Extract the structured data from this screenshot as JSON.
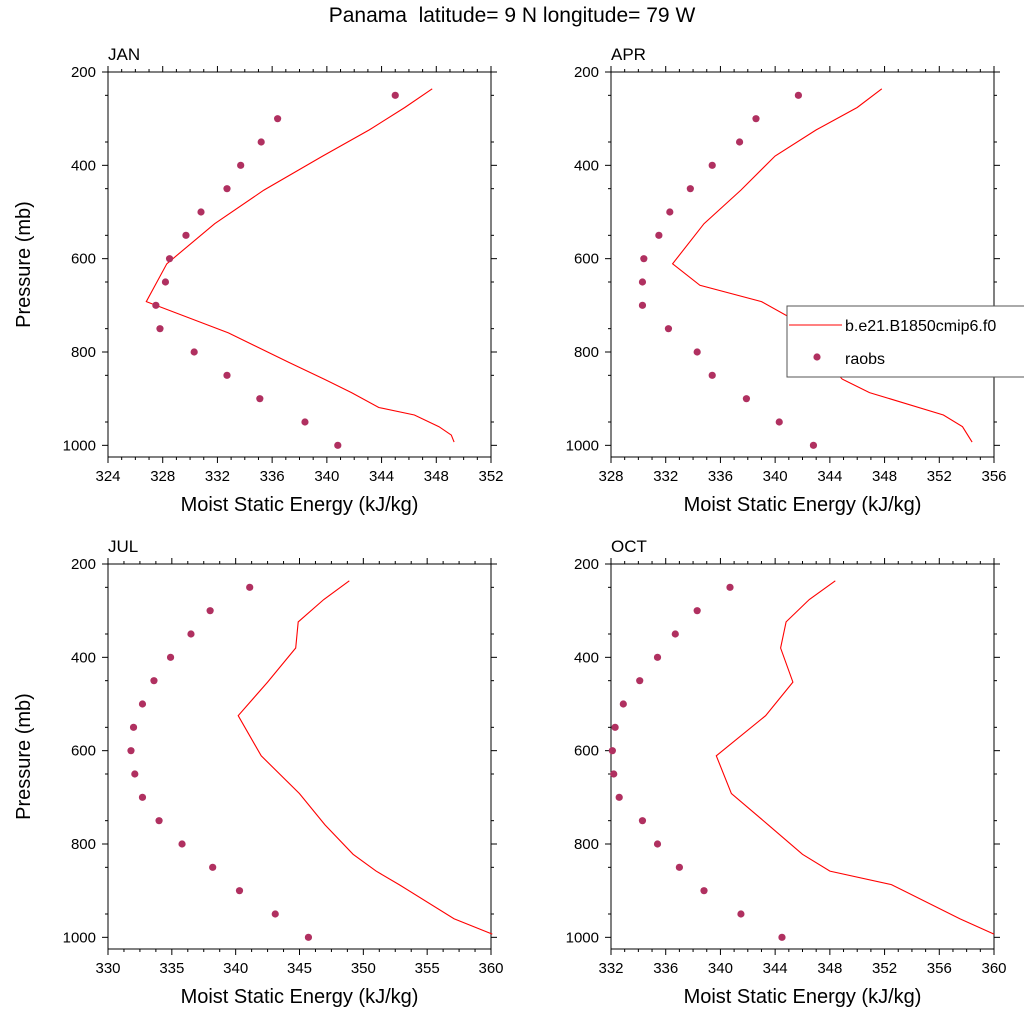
{
  "title": "Panama  latitude= 9 N longitude= 79 W",
  "colors": {
    "model_line": "#ff0000",
    "obs_marker": "#b03060",
    "axis": "#000000",
    "legend_border": "#555555"
  },
  "legend": {
    "position": "right, overlapping APR panel",
    "entries": [
      {
        "label": "b.e21.B1850cmip6.f0",
        "kind": "line",
        "color": "#ff0000"
      },
      {
        "label": "raobs",
        "kind": "marker",
        "color": "#b03060"
      }
    ]
  },
  "chart_data": [
    {
      "type": "line",
      "panel": "JAN",
      "xlabel": "Moist Static Energy (kJ/kg)",
      "ylabel": "Pressure (mb)",
      "xlim": [
        324,
        352
      ],
      "xticks": [
        324,
        328,
        332,
        336,
        340,
        344,
        348,
        352
      ],
      "ylim": [
        1025,
        200
      ],
      "yticks": [
        200,
        400,
        600,
        800,
        1000
      ],
      "series": [
        {
          "name": "b.e21.B1850cmip6.f0",
          "kind": "line",
          "x": [
            347.7,
            345.7,
            343.1,
            339.7,
            335.4,
            331.8,
            328.3,
            326.8,
            332.8,
            337.2,
            339.8,
            341.8,
            343.8,
            346.4,
            348.2,
            349.1,
            349.3
          ],
          "y": [
            236,
            276,
            324,
            380,
            453,
            525,
            611,
            692,
            759,
            822,
            858,
            887,
            919,
            935,
            960,
            978,
            993
          ]
        },
        {
          "name": "raobs",
          "kind": "marker",
          "x": [
            345.0,
            336.4,
            335.2,
            333.7,
            332.7,
            330.8,
            329.7,
            328.5,
            328.2,
            327.5,
            327.8,
            330.3,
            332.7,
            335.1,
            338.4,
            340.8
          ],
          "y": [
            250,
            300,
            350,
            400,
            450,
            500,
            550,
            600,
            650,
            700,
            750,
            800,
            850,
            900,
            950,
            1000
          ]
        }
      ]
    },
    {
      "type": "line",
      "panel": "APR",
      "xlabel": "Moist Static Energy (kJ/kg)",
      "ylabel": "",
      "xlim": [
        328,
        356
      ],
      "xticks": [
        328,
        332,
        336,
        340,
        344,
        348,
        352,
        356
      ],
      "ylim": [
        1025,
        200
      ],
      "yticks": [
        200,
        400,
        600,
        800,
        1000
      ],
      "series": [
        {
          "name": "b.e21.B1850cmip6.f0",
          "kind": "line",
          "x": [
            347.8,
            346.0,
            343.0,
            340.0,
            337.5,
            334.8,
            332.5,
            334.5,
            339.0,
            343.1,
            343.8,
            344.9,
            346.9,
            352.3,
            353.7,
            354.4
          ],
          "y": [
            236,
            276,
            324,
            380,
            453,
            525,
            611,
            657,
            692,
            759,
            822,
            858,
            887,
            935,
            960,
            993
          ]
        },
        {
          "name": "raobs",
          "kind": "marker",
          "x": [
            341.7,
            338.6,
            337.4,
            335.4,
            333.8,
            332.3,
            331.5,
            330.4,
            330.3,
            330.3,
            332.2,
            334.3,
            335.4,
            337.9,
            340.3,
            342.8
          ],
          "y": [
            250,
            300,
            350,
            400,
            450,
            500,
            550,
            600,
            650,
            700,
            750,
            800,
            850,
            900,
            950,
            1000
          ]
        }
      ]
    },
    {
      "type": "line",
      "panel": "JUL",
      "xlabel": "Moist Static Energy (kJ/kg)",
      "ylabel": "Pressure (mb)",
      "xlim": [
        330,
        360
      ],
      "xticks": [
        330,
        335,
        340,
        345,
        350,
        355,
        360
      ],
      "ylim": [
        1025,
        200
      ],
      "yticks": [
        200,
        400,
        600,
        800,
        1000
      ],
      "series": [
        {
          "name": "b.e21.B1850cmip6.f0",
          "kind": "line",
          "x": [
            348.9,
            346.9,
            344.9,
            344.7,
            342.5,
            340.2,
            342.0,
            345.0,
            347.0,
            349.2,
            351.0,
            352.8,
            357.1,
            360.1
          ],
          "y": [
            236,
            276,
            324,
            380,
            453,
            525,
            611,
            692,
            759,
            822,
            858,
            887,
            960,
            993
          ]
        },
        {
          "name": "raobs",
          "kind": "marker",
          "x": [
            341.1,
            338.0,
            336.5,
            334.9,
            333.6,
            332.7,
            332.0,
            331.8,
            332.1,
            332.7,
            334.0,
            335.8,
            338.2,
            340.3,
            343.1,
            345.7
          ],
          "y": [
            250,
            300,
            350,
            400,
            450,
            500,
            550,
            600,
            650,
            700,
            750,
            800,
            850,
            900,
            950,
            1000
          ]
        }
      ]
    },
    {
      "type": "line",
      "panel": "OCT",
      "xlabel": "Moist Static Energy (kJ/kg)",
      "ylabel": "",
      "xlim": [
        332,
        360
      ],
      "xticks": [
        332,
        336,
        340,
        344,
        348,
        352,
        356,
        360
      ],
      "ylim": [
        1025,
        200
      ],
      "yticks": [
        200,
        400,
        600,
        800,
        1000
      ],
      "series": [
        {
          "name": "b.e21.B1850cmip6.f0",
          "kind": "line",
          "x": [
            348.4,
            346.5,
            344.8,
            344.4,
            345.3,
            343.3,
            339.7,
            340.8,
            343.5,
            346.0,
            348.0,
            352.5,
            357.5,
            360.0
          ],
          "y": [
            236,
            276,
            324,
            380,
            453,
            525,
            611,
            692,
            759,
            822,
            858,
            887,
            960,
            993
          ]
        },
        {
          "name": "raobs",
          "kind": "marker",
          "x": [
            340.7,
            338.3,
            336.7,
            335.4,
            334.1,
            332.9,
            332.3,
            332.1,
            332.2,
            332.6,
            334.3,
            335.4,
            337.0,
            338.8,
            341.5,
            344.5
          ],
          "y": [
            250,
            300,
            350,
            400,
            450,
            500,
            550,
            600,
            650,
            700,
            750,
            800,
            850,
            900,
            950,
            1000
          ]
        }
      ]
    }
  ]
}
